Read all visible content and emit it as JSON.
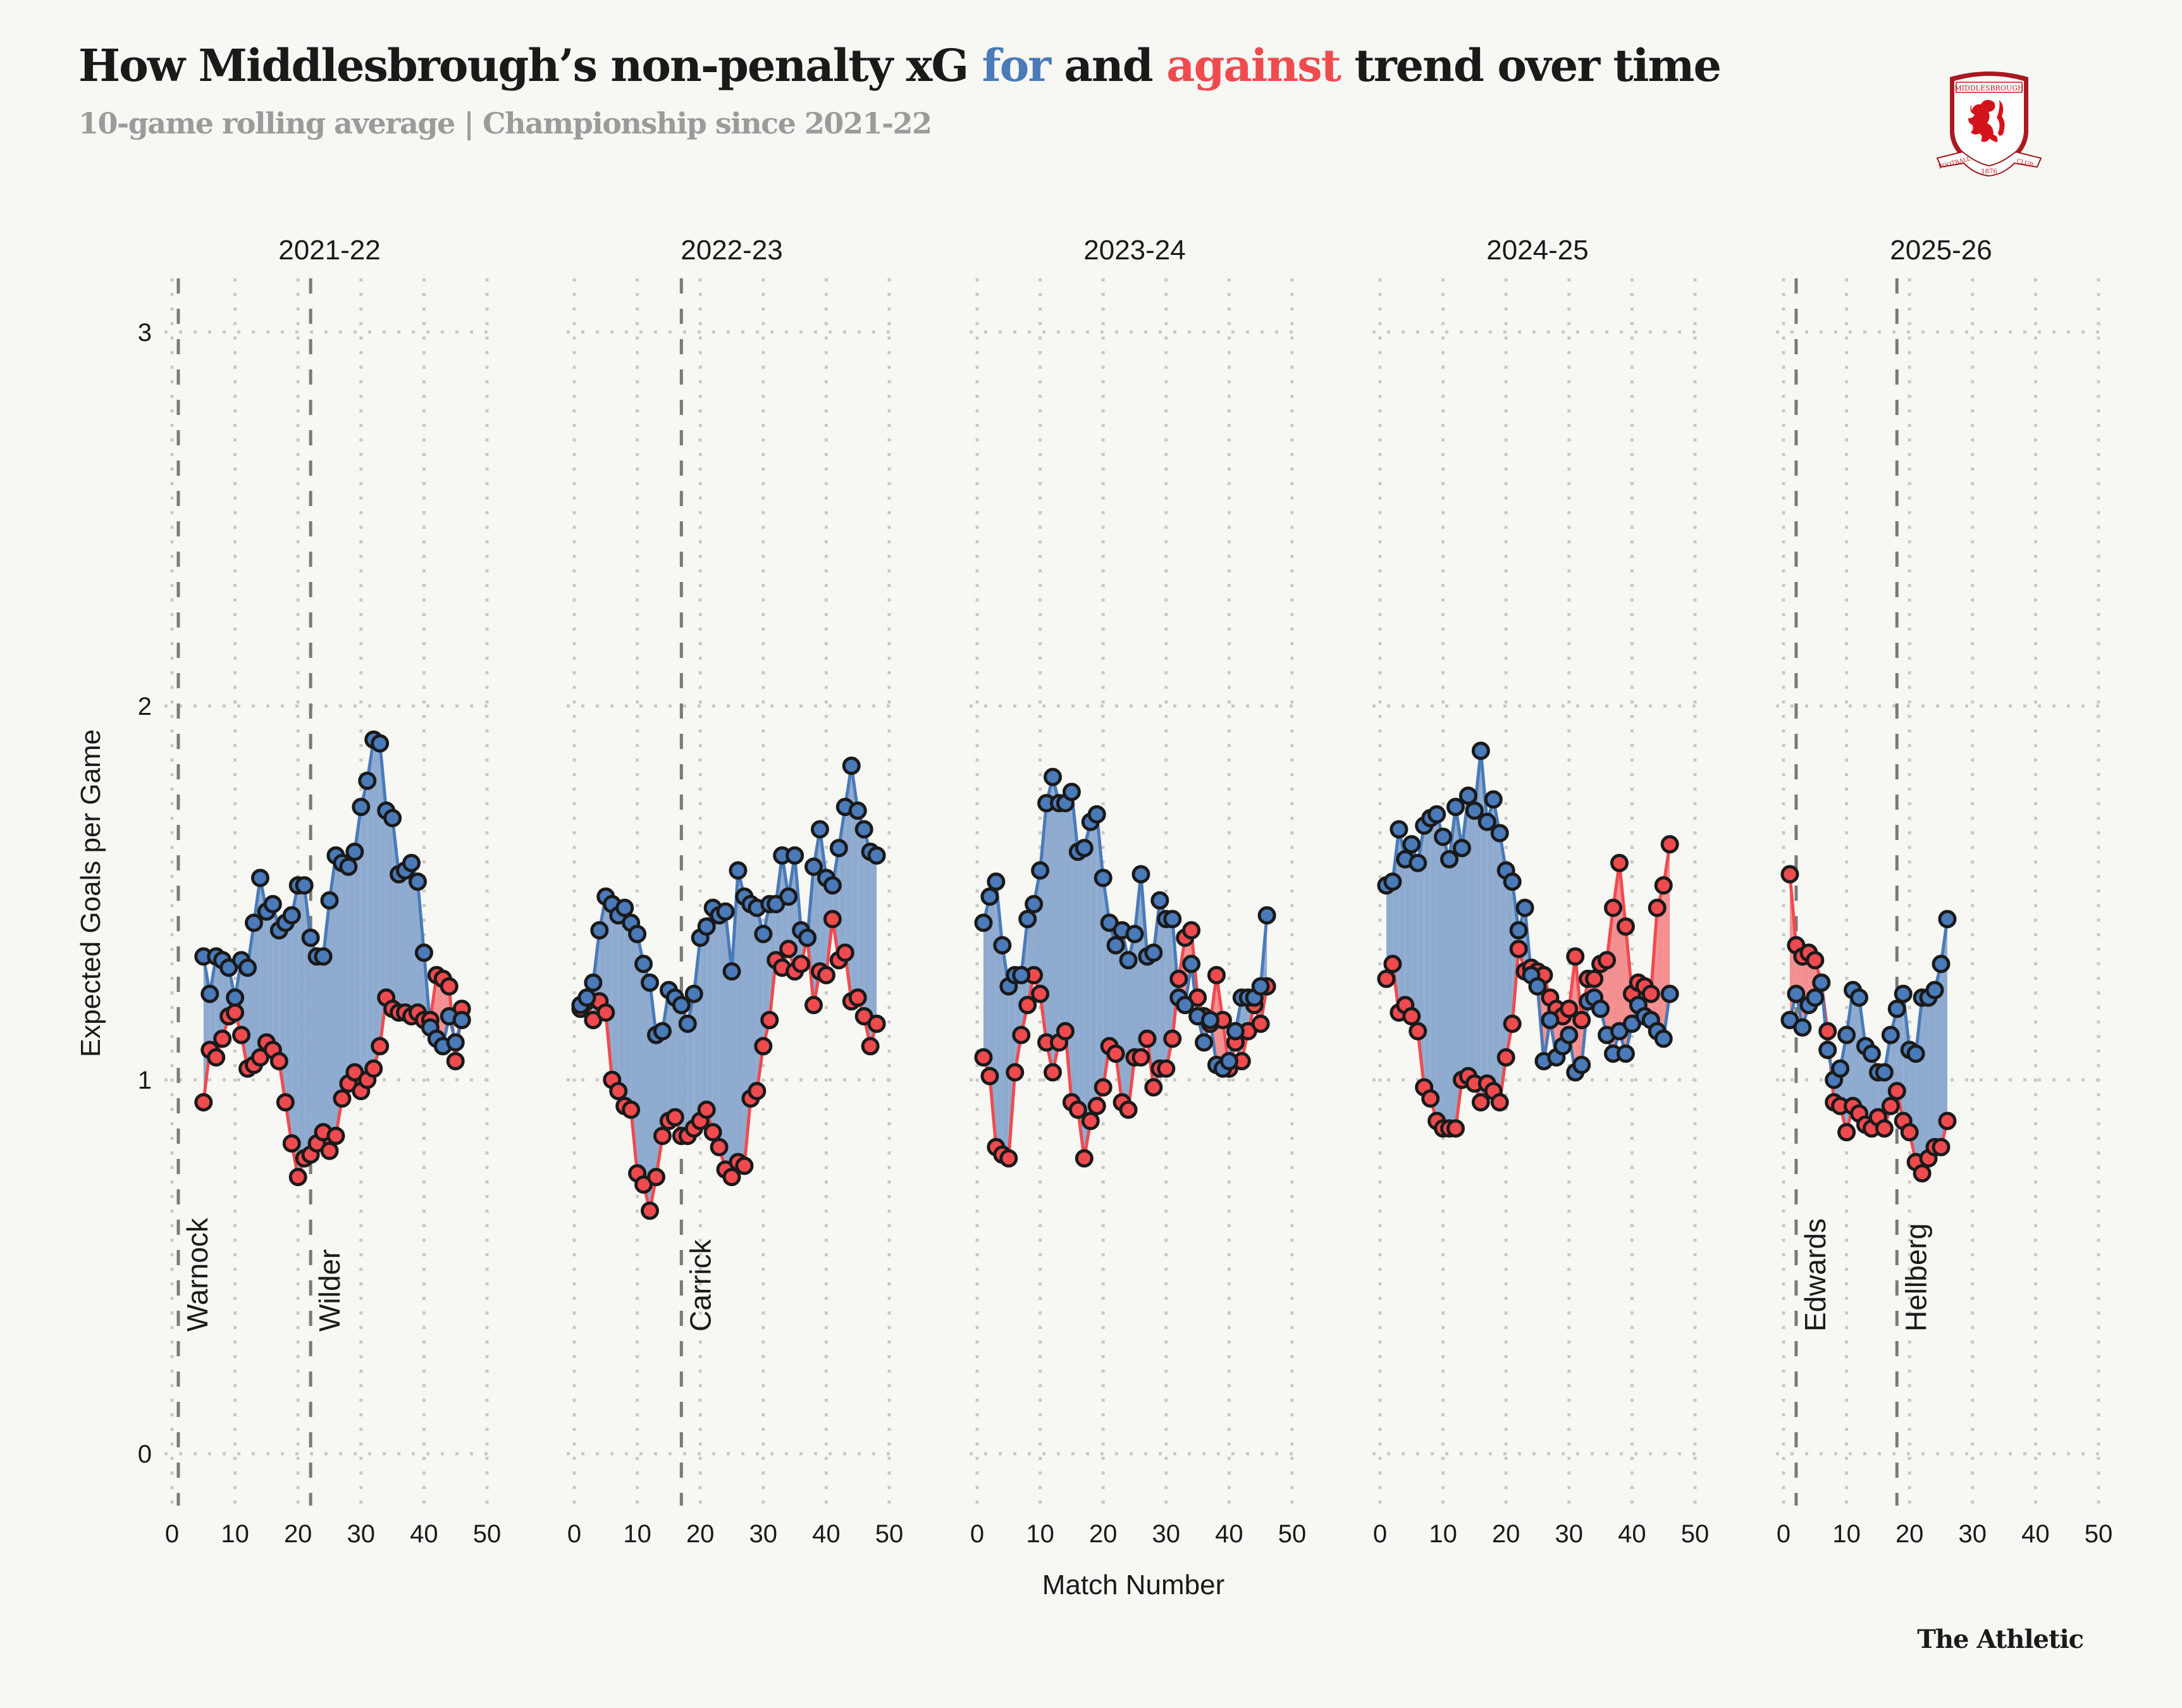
{
  "header": {
    "title_pre": "How Middlesbrough’s non-penalty xG ",
    "title_for": "for",
    "title_mid": " and ",
    "title_against": "against",
    "title_post": " trend over time",
    "subtitle": "10-game rolling average | Championship since 2021-22",
    "crest": {
      "top": "MIDDLESBROUGH",
      "left_ribbon": "FOOTBALL",
      "right_ribbon": "CLUB",
      "year": "1876"
    }
  },
  "footer": {
    "brand": "The Athletic"
  },
  "colors": {
    "for": "#4a7ab8",
    "against": "#ef4b4f",
    "for_fill": "#8eabcf",
    "against_fill": "#f48f91",
    "background": "#f7f7f3"
  },
  "chart_data": {
    "type": "line",
    "title": "How Middlesbrough’s non-penalty xG for and against trend over time",
    "subtitle": "10-game rolling average | Championship since 2021-22",
    "xlabel": "Match Number",
    "ylabel": "Expected Goals per Game",
    "xlim": [
      0,
      50
    ],
    "ylim": [
      0,
      3
    ],
    "xticks": [
      0,
      10,
      20,
      30,
      40,
      50
    ],
    "yticks": [
      0,
      1,
      2,
      3
    ],
    "grid": true,
    "legend": "none (colored words in title: blue = for, red = against)",
    "facets": [
      {
        "season": "2021-22",
        "x_start": 5,
        "for": [
          1.33,
          1.23,
          1.33,
          1.32,
          1.3,
          1.22,
          1.32,
          1.3,
          1.42,
          1.54,
          1.45,
          1.47,
          1.4,
          1.42,
          1.44,
          1.52,
          1.52,
          1.38,
          1.33,
          1.33,
          1.48,
          1.6,
          1.58,
          1.57,
          1.61,
          1.73,
          1.8,
          1.91,
          1.9,
          1.72,
          1.7,
          1.55,
          1.56,
          1.58,
          1.53,
          1.34,
          1.14,
          1.11,
          1.09,
          1.17,
          1.1,
          1.16
        ],
        "against": [
          0.94,
          1.08,
          1.06,
          1.11,
          1.17,
          1.18,
          1.12,
          1.03,
          1.04,
          1.06,
          1.1,
          1.08,
          1.05,
          0.94,
          0.83,
          0.74,
          0.79,
          0.8,
          0.83,
          0.86,
          0.81,
          0.85,
          0.95,
          0.99,
          1.02,
          0.97,
          1.0,
          1.03,
          1.09,
          1.22,
          1.19,
          1.18,
          1.18,
          1.17,
          1.18,
          1.16,
          1.16,
          1.28,
          1.27,
          1.25,
          1.05,
          1.19
        ],
        "managers": [
          {
            "name": "Warnock",
            "match": 1
          },
          {
            "name": "Wilder",
            "match": 22
          }
        ]
      },
      {
        "season": "2022-23",
        "x_start": 1,
        "for": [
          1.2,
          1.22,
          1.26,
          1.4,
          1.49,
          1.47,
          1.44,
          1.46,
          1.42,
          1.39,
          1.31,
          1.26,
          1.12,
          1.13,
          1.24,
          1.22,
          1.2,
          1.15,
          1.23,
          1.38,
          1.41,
          1.46,
          1.44,
          1.45,
          1.29,
          1.56,
          1.49,
          1.47,
          1.46,
          1.39,
          1.47,
          1.47,
          1.6,
          1.49,
          1.6,
          1.4,
          1.38,
          1.57,
          1.67,
          1.54,
          1.52,
          1.62,
          1.73,
          1.84,
          1.72,
          1.67,
          1.61,
          1.6
        ],
        "against": [
          1.19,
          1.21,
          1.16,
          1.21,
          1.18,
          1.0,
          0.97,
          0.93,
          0.92,
          0.75,
          0.72,
          0.65,
          0.74,
          0.85,
          0.89,
          0.9,
          0.85,
          0.85,
          0.87,
          0.89,
          0.92,
          0.86,
          0.82,
          0.76,
          0.74,
          0.78,
          0.77,
          0.95,
          0.97,
          1.09,
          1.16,
          1.32,
          1.3,
          1.35,
          1.29,
          1.31,
          1.38,
          1.2,
          1.29,
          1.28,
          1.43,
          1.32,
          1.34,
          1.21,
          1.22,
          1.17,
          1.09,
          1.15
        ],
        "managers": [
          {
            "name": "Carrick",
            "match": 17
          }
        ]
      },
      {
        "season": "2023-24",
        "x_start": 1,
        "for": [
          1.42,
          1.49,
          1.53,
          1.36,
          1.25,
          1.28,
          1.28,
          1.43,
          1.47,
          1.56,
          1.74,
          1.81,
          1.74,
          1.74,
          1.77,
          1.61,
          1.62,
          1.69,
          1.71,
          1.54,
          1.42,
          1.36,
          1.4,
          1.32,
          1.39,
          1.55,
          1.33,
          1.34,
          1.48,
          1.43,
          1.43,
          1.22,
          1.2,
          1.31,
          1.17,
          1.1,
          1.16,
          1.04,
          1.03,
          1.05,
          1.13,
          1.22,
          1.22,
          1.22,
          1.25,
          1.44
        ],
        "against": [
          1.06,
          1.01,
          0.82,
          0.8,
          0.79,
          1.02,
          1.12,
          1.2,
          1.28,
          1.23,
          1.1,
          1.02,
          1.1,
          1.13,
          0.94,
          0.92,
          0.79,
          0.89,
          0.93,
          0.98,
          1.09,
          1.07,
          0.94,
          0.92,
          1.06,
          1.06,
          1.11,
          0.98,
          1.03,
          1.03,
          1.11,
          1.27,
          1.38,
          1.4,
          1.22,
          1.17,
          1.15,
          1.28,
          1.16,
          1.03,
          1.1,
          1.05,
          1.13,
          1.2,
          1.15,
          1.25
        ],
        "managers": []
      },
      {
        "season": "2024-25",
        "x_start": 1,
        "for": [
          1.52,
          1.53,
          1.67,
          1.59,
          1.63,
          1.58,
          1.68,
          1.7,
          1.71,
          1.65,
          1.59,
          1.73,
          1.62,
          1.76,
          1.72,
          1.88,
          1.69,
          1.75,
          1.66,
          1.56,
          1.53,
          1.4,
          1.46,
          1.28,
          1.25,
          1.05,
          1.16,
          1.06,
          1.09,
          1.12,
          1.02,
          1.04,
          1.21,
          1.22,
          1.19,
          1.12,
          1.07,
          1.13,
          1.07,
          1.15,
          1.2,
          1.17,
          1.16,
          1.13,
          1.11,
          1.23
        ],
        "against": [
          1.27,
          1.31,
          1.18,
          1.2,
          1.17,
          1.13,
          0.98,
          0.95,
          0.89,
          0.87,
          0.87,
          0.87,
          1.0,
          1.01,
          0.99,
          0.94,
          0.99,
          0.97,
          0.94,
          1.06,
          1.15,
          1.35,
          1.29,
          1.3,
          1.29,
          1.28,
          1.22,
          1.19,
          1.17,
          1.19,
          1.33,
          1.16,
          1.27,
          1.27,
          1.31,
          1.32,
          1.46,
          1.58,
          1.41,
          1.23,
          1.26,
          1.25,
          1.23,
          1.46,
          1.52,
          1.63
        ],
        "managers": []
      },
      {
        "season": "2025-26",
        "x_start": 1,
        "for": [
          1.16,
          1.23,
          1.14,
          1.2,
          1.22,
          1.26,
          1.08,
          1.0,
          1.03,
          1.12,
          1.24,
          1.22,
          1.09,
          1.07,
          1.02,
          1.02,
          1.12,
          1.19,
          1.23,
          1.08,
          1.07,
          1.22,
          1.22,
          1.24,
          1.31,
          1.43
        ],
        "against": [
          1.55,
          1.36,
          1.33,
          1.34,
          1.32,
          1.26,
          1.13,
          0.94,
          0.93,
          0.86,
          0.93,
          0.91,
          0.88,
          0.87,
          0.9,
          0.87,
          0.93,
          0.97,
          0.89,
          0.86,
          0.78,
          0.75,
          0.79,
          0.82,
          0.82,
          0.89
        ],
        "managers": [
          {
            "name": "Edwards",
            "match": 2
          },
          {
            "name": "Hellberg",
            "match": 18
          }
        ]
      }
    ]
  }
}
